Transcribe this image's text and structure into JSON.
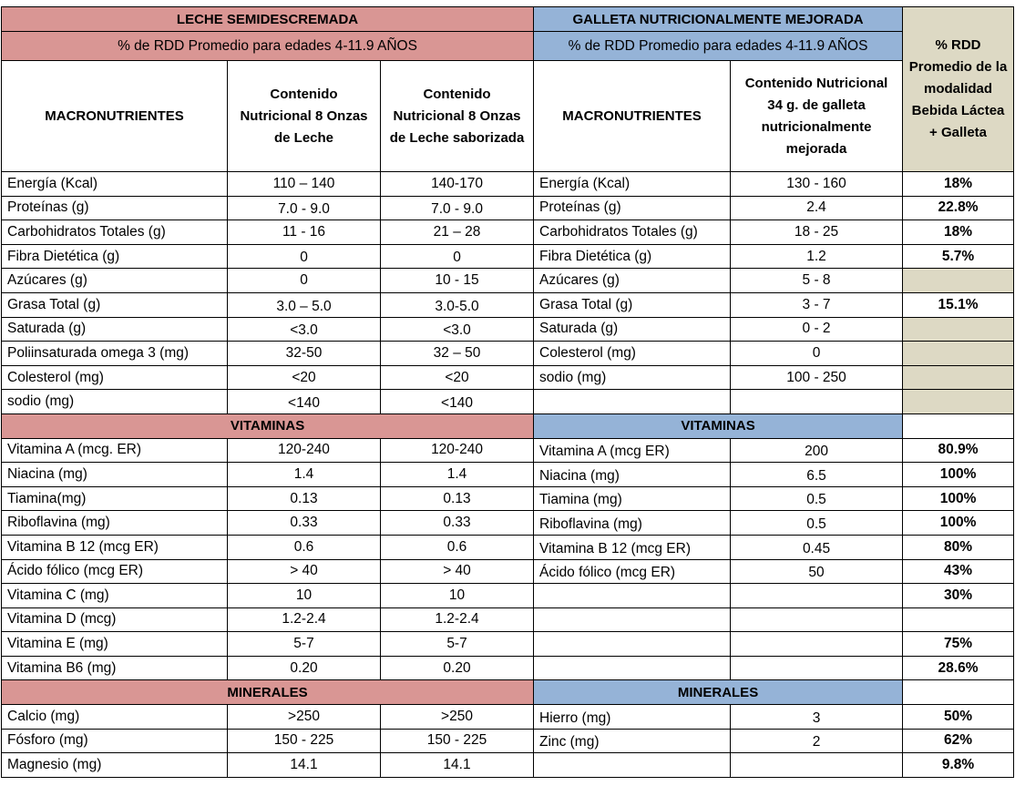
{
  "header": {
    "milk_title": "LECHE SEMIDESCREMADA",
    "milk_subtitle": "% de RDD  Promedio  para edades 4-11.9 AÑOS",
    "cookie_title": "GALLETA NUTRICIONALMENTE MEJORADA",
    "cookie_subtitle": "% de RDD  Promedio  para edades 4-11.9 AÑOS",
    "rdd_header": "% RDD Promedio de la modalidad Bebida Láctea + Galleta"
  },
  "columns": {
    "milk_macro": "MACRONUTRIENTES",
    "milk_content": "Contenido Nutricional 8 Onzas de Leche",
    "milk_flavored": "Contenido Nutricional 8 Onzas de Leche saborizada",
    "cookie_macro": "MACRONUTRIENTES",
    "cookie_content": "Contenido Nutricional 34 g. de galleta nutricionalmente mejorada"
  },
  "sections": {
    "milk_vitamins": "VITAMINAS",
    "cookie_vitamins": "VITAMINAS",
    "milk_minerals": "MINERALES",
    "cookie_minerals": "MINERALES"
  },
  "macro_rows": [
    {
      "n": "Energía (Kcal)",
      "m": "110 – 140",
      "f": "140-170",
      "cn": "Energía (Kcal)",
      "cv": "130 - 160",
      "r": "18%"
    },
    {
      "n": "Proteínas (g)",
      "m": "7.0 - 9.0",
      "f": "7.0 - 9.0",
      "cn": "Proteínas (g)",
      "cv": "2.4",
      "r": "22.8%"
    },
    {
      "n": "Carbohidratos Totales (g)",
      "m": "11 - 16",
      "f": "21 – 28",
      "cn": "Carbohidratos Totales (g)",
      "cv": "18 - 25",
      "r": "18%"
    },
    {
      "n": "Fibra Dietética (g)",
      "m": "0",
      "f": "0",
      "cn": "Fibra Dietética (g)",
      "cv": "1.2",
      "r": "5.7%"
    },
    {
      "n": "Azúcares (g)",
      "m": "0",
      "f": "10 - 15",
      "cn": "Azúcares (g)",
      "cv": "5  -  8",
      "r": ""
    },
    {
      "n": "Grasa Total  (g)",
      "m": "3.0 – 5.0",
      "f": "3.0-5.0",
      "cn": "Grasa Total  (g)",
      "cv": "3  -  7",
      "r": "15.1%"
    },
    {
      "n": "Saturada (g)",
      "m": "<3.0",
      "f": "<3.0",
      "cn": "Saturada (g)",
      "cv": "0 - 2",
      "r": ""
    },
    {
      "n": "Poliinsaturada omega 3 (mg)",
      "m": "32-50",
      "f": "32 – 50",
      "cn": "Colesterol (mg)",
      "cv": "0",
      "r": ""
    },
    {
      "n": "Colesterol (mg)",
      "m": "<20",
      "f": "<20",
      "cn": "sodio (mg)",
      "cv": "100 - 250",
      "r": ""
    },
    {
      "n": "sodio (mg)",
      "m": "<140",
      "f": "<140",
      "cn": "",
      "cv": "",
      "r": ""
    }
  ],
  "vitamin_rows": [
    {
      "n": "Vitamina A (mcg. ER)",
      "m": "120-240",
      "f": "120-240",
      "cn": "Vitamina A (mcg ER)",
      "cv": "200",
      "r": "80.9%"
    },
    {
      "n": "Niacina (mg)",
      "m": "1.4",
      "f": "1.4",
      "cn": "Niacina (mg)",
      "cv": "6.5",
      "r": "100%"
    },
    {
      "n": "Tiamina(mg)",
      "m": "0.13",
      "f": "0.13",
      "cn": "Tiamina (mg)",
      "cv": "0.5",
      "r": "100%"
    },
    {
      "n": "Riboflavina (mg)",
      "m": "0.33",
      "f": "0.33",
      "cn": "Riboflavina (mg)",
      "cv": "0.5",
      "r": "100%"
    },
    {
      "n": "Vitamina B 12 (mcg ER)",
      "m": "0.6",
      "f": "0.6",
      "cn": "Vitamina B 12 (mcg ER)",
      "cv": "0.45",
      "r": "80%"
    },
    {
      "n": "Ácido fólico  (mcg ER)",
      "m": "> 40",
      "f": "> 40",
      "cn": "Ácido fólico  (mcg ER)",
      "cv": "50",
      "r": "43%"
    },
    {
      "n": "Vitamina C (mg)",
      "m": "10",
      "f": "10",
      "cn": "",
      "cv": "",
      "r": "30%"
    },
    {
      "n": "Vitamina D (mcg)",
      "m": "1.2-2.4",
      "f": "1.2-2.4",
      "cn": "",
      "cv": "",
      "r": ""
    },
    {
      "n": "Vitamina E (mg)",
      "m": "5-7",
      "f": "5-7",
      "cn": "",
      "cv": "",
      "r": "75%"
    },
    {
      "n": "Vitamina B6 (mg)",
      "m": "0.20",
      "f": "0.20",
      "cn": "",
      "cv": "",
      "r": "28.6%"
    }
  ],
  "mineral_rows": [
    {
      "n": "Calcio (mg)",
      "m": ">250",
      "f": ">250",
      "cn": "Hierro (mg)",
      "cv": "3",
      "r": "50%"
    },
    {
      "n": "Fósforo (mg)",
      "m": "150 - 225",
      "f": "150 - 225",
      "cn": "Zinc (mg)",
      "cv": "2",
      "r": "62%"
    },
    {
      "n": "Magnesio (mg)",
      "m": "14.1",
      "f": "14.1",
      "cn": "",
      "cv": "",
      "r": "9.8%"
    }
  ]
}
